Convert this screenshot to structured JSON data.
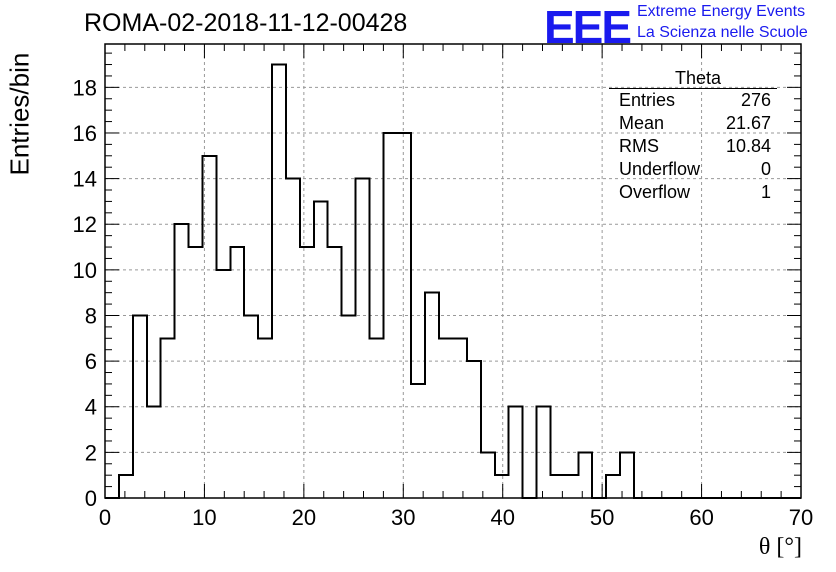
{
  "title": "ROMA-02-2018-11-12-00428",
  "logo": {
    "mark": "EEE",
    "line1": "Extreme Energy Events",
    "line2": "La Scienza nelle Scuole",
    "color": "#1a1aee"
  },
  "stats": {
    "name": "Theta",
    "rows": [
      {
        "label": "Entries",
        "value": "276"
      },
      {
        "label": "Mean",
        "value": "21.67"
      },
      {
        "label": "RMS",
        "value": "10.84"
      },
      {
        "label": "Underflow",
        "value": "0"
      },
      {
        "label": "Overflow",
        "value": "1"
      }
    ]
  },
  "chart_data": {
    "type": "bar",
    "style": "step-histogram",
    "title": "ROMA-02-2018-11-12-00428",
    "xlabel": "θ [°]",
    "ylabel": "Entries/bin",
    "xlim": [
      0,
      70
    ],
    "ylim": [
      0,
      19.9
    ],
    "xticks": [
      0,
      10,
      20,
      30,
      40,
      50,
      60,
      70
    ],
    "yticks": [
      0,
      2,
      4,
      6,
      8,
      10,
      12,
      14,
      16,
      18
    ],
    "grid": true,
    "bin_width": 1.4,
    "bin_edges_start": 0,
    "values": [
      0,
      1,
      8,
      4,
      7,
      12,
      11,
      15,
      10,
      11,
      8,
      7,
      19,
      14,
      11,
      13,
      11,
      8,
      14,
      7,
      16,
      16,
      5,
      9,
      7,
      7,
      6,
      2,
      1,
      4,
      0,
      4,
      1,
      1,
      2,
      0,
      1,
      2,
      0,
      0,
      0,
      0,
      0,
      0,
      0,
      0,
      0,
      0,
      0,
      0
    ]
  }
}
